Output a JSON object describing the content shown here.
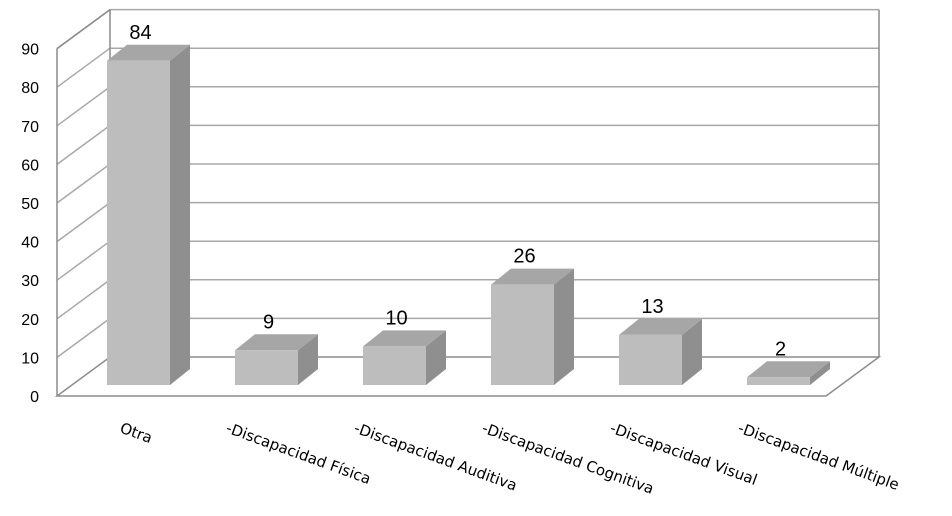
{
  "chart_data": {
    "type": "bar",
    "categories": [
      "Otra",
      "-Discapacidad Física",
      "-Discapacidad Auditiva",
      "-Discapacidad Cognitiva",
      "-Discapacidad Visual",
      "-Discapacidad Múltiple"
    ],
    "values": [
      84,
      9,
      10,
      26,
      13,
      2
    ],
    "title": "",
    "xlabel": "",
    "ylabel": "",
    "ylim": [
      0,
      90
    ],
    "yticks": [
      0,
      10,
      20,
      30,
      40,
      50,
      60,
      70,
      80,
      90
    ],
    "grid": true,
    "legend": "none",
    "three_d": true,
    "colors": {
      "bar_front": "#bdbdbd",
      "bar_top": "#a6a6a6",
      "bar_side": "#8f8f8f",
      "grid": "#a8a8a8",
      "frame": "#8c8c8c"
    }
  }
}
